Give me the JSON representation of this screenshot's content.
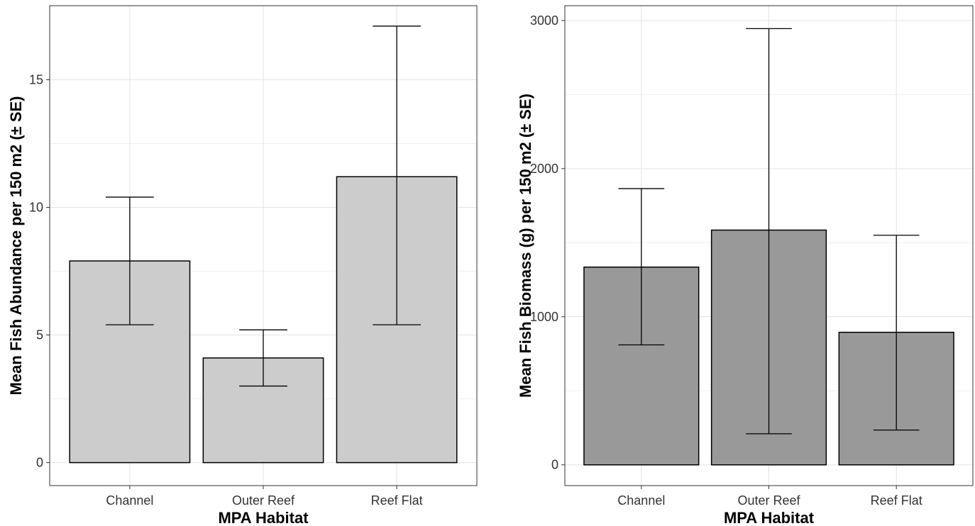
{
  "chart_data": [
    {
      "type": "bar",
      "categories": [
        "Channel",
        "Outer Reef",
        "Reef Flat"
      ],
      "values": [
        7.9,
        4.1,
        11.2
      ],
      "error_low": [
        5.4,
        3.0,
        5.4
      ],
      "error_high": [
        10.4,
        5.2,
        17.1
      ],
      "title": "",
      "xlabel": "MPA Habitat",
      "ylabel": "Mean Fish Abundance per 150 m2 (± SE)",
      "ylim": [
        -0.9,
        17.9
      ],
      "yticks": [
        0,
        5,
        10,
        15
      ],
      "bar_color": "#cccccc",
      "grid": true
    },
    {
      "type": "bar",
      "categories": [
        "Channel",
        "Outer Reef",
        "Reef Flat"
      ],
      "values": [
        1335,
        1585,
        895
      ],
      "error_low": [
        810,
        210,
        235
      ],
      "error_high": [
        1865,
        2945,
        1550
      ],
      "title": "",
      "xlabel": "MPA Habitat",
      "ylabel": "Mean Fish Biomass (g) per 150 m2 (± SE)",
      "ylim": [
        -140,
        3100
      ],
      "yticks": [
        0,
        1000,
        2000,
        3000
      ],
      "bar_color": "#999999",
      "grid": true
    }
  ]
}
